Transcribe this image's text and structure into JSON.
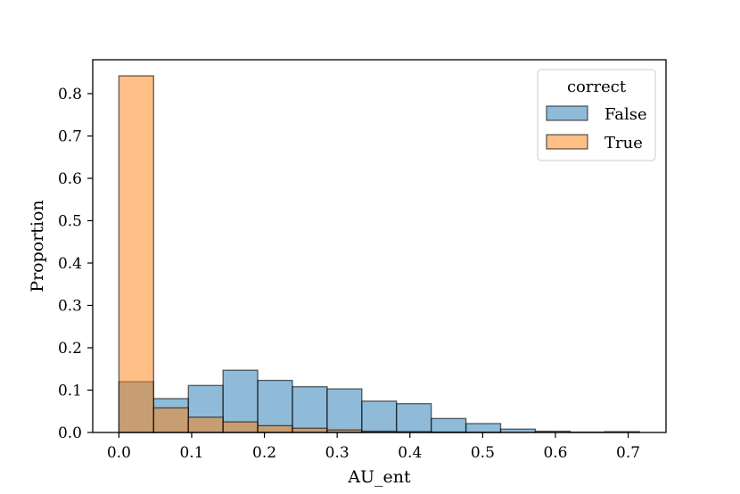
{
  "chart_data": {
    "type": "bar",
    "subtype": "overlapping-histogram",
    "xlabel": "AU_ent",
    "ylabel": "Proportion",
    "xlim": [
      -0.036,
      0.752
    ],
    "ylim": [
      0.0,
      0.88
    ],
    "xticks": [
      0.0,
      0.1,
      0.2,
      0.3,
      0.4,
      0.5,
      0.6,
      0.7
    ],
    "xtick_labels": [
      "0.0",
      "0.1",
      "0.2",
      "0.3",
      "0.4",
      "0.5",
      "0.6",
      "0.7"
    ],
    "yticks": [
      0.0,
      0.1,
      0.2,
      0.3,
      0.4,
      0.5,
      0.6,
      0.7,
      0.8
    ],
    "ytick_labels": [
      "0.0",
      "0.1",
      "0.2",
      "0.3",
      "0.4",
      "0.5",
      "0.6",
      "0.7",
      "0.8"
    ],
    "bin_edges": [
      0.0,
      0.0477,
      0.0954,
      0.1431,
      0.1908,
      0.2385,
      0.2862,
      0.3339,
      0.3816,
      0.4293,
      0.477,
      0.5247,
      0.5724,
      0.6201,
      0.6678,
      0.7155
    ],
    "legend": {
      "title": "correct",
      "position": "top-right"
    },
    "series": [
      {
        "name": "False",
        "color": "#1f77b4",
        "values": [
          0.12,
          0.08,
          0.111,
          0.147,
          0.123,
          0.108,
          0.103,
          0.074,
          0.068,
          0.033,
          0.021,
          0.008,
          0.003,
          0.001,
          0.002
        ]
      },
      {
        "name": "True",
        "color": "#ff7f0e",
        "values": [
          0.842,
          0.058,
          0.036,
          0.025,
          0.016,
          0.01,
          0.006,
          0.003,
          0.002,
          0.001,
          0.0005,
          0.0,
          0.0,
          0.0,
          0.0
        ]
      }
    ]
  }
}
